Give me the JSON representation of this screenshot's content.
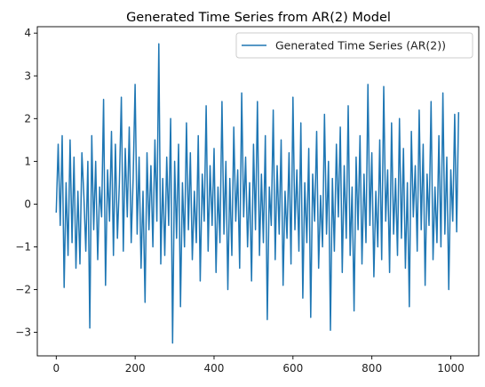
{
  "chart_data": {
    "type": "line",
    "title": "Generated Time Series from AR(2) Model",
    "xlabel": "",
    "ylabel": "",
    "xlim": [
      -48,
      1071
    ],
    "ylim": [
      -3.55,
      4.15
    ],
    "x_ticks": [
      0,
      200,
      400,
      600,
      800,
      1000
    ],
    "y_ticks": [
      -3,
      -2,
      -1,
      0,
      1,
      2,
      3,
      4
    ],
    "x_tick_labels": [
      "0",
      "200",
      "400",
      "600",
      "800",
      "1000"
    ],
    "y_tick_labels": [
      "−3",
      "−2",
      "−1",
      "0",
      "1",
      "2",
      "3",
      "4"
    ],
    "grid": false,
    "legend_position": "top-right",
    "series": [
      {
        "name": "Generated Time Series (AR(2))",
        "color": "#1f77b4",
        "x": [
          0,
          5,
          10,
          15,
          20,
          25,
          30,
          35,
          40,
          45,
          50,
          55,
          60,
          65,
          70,
          75,
          80,
          85,
          90,
          95,
          100,
          105,
          110,
          115,
          120,
          125,
          130,
          135,
          140,
          145,
          150,
          155,
          160,
          165,
          170,
          175,
          180,
          185,
          190,
          195,
          200,
          205,
          210,
          215,
          220,
          225,
          230,
          235,
          240,
          245,
          250,
          255,
          260,
          265,
          270,
          275,
          280,
          285,
          290,
          295,
          300,
          305,
          310,
          315,
          320,
          325,
          330,
          335,
          340,
          345,
          350,
          355,
          360,
          365,
          370,
          375,
          380,
          385,
          390,
          395,
          400,
          405,
          410,
          415,
          420,
          425,
          430,
          435,
          440,
          445,
          450,
          455,
          460,
          465,
          470,
          475,
          480,
          485,
          490,
          495,
          500,
          505,
          510,
          515,
          520,
          525,
          530,
          535,
          540,
          545,
          550,
          555,
          560,
          565,
          570,
          575,
          580,
          585,
          590,
          595,
          600,
          605,
          610,
          615,
          620,
          625,
          630,
          635,
          640,
          645,
          650,
          655,
          660,
          665,
          670,
          675,
          680,
          685,
          690,
          695,
          700,
          705,
          710,
          715,
          720,
          725,
          730,
          735,
          740,
          745,
          750,
          755,
          760,
          765,
          770,
          775,
          780,
          785,
          790,
          795,
          800,
          805,
          810,
          815,
          820,
          825,
          830,
          835,
          840,
          845,
          850,
          855,
          860,
          865,
          870,
          875,
          880,
          885,
          890,
          895,
          900,
          905,
          910,
          915,
          920,
          925,
          930,
          935,
          940,
          945,
          950,
          955,
          960,
          965,
          970,
          975,
          980,
          985,
          990,
          995,
          1000,
          1005,
          1010,
          1015,
          1020
        ],
        "values": [
          -0.2,
          1.4,
          -0.5,
          1.6,
          -1.95,
          0.5,
          -1.2,
          1.5,
          -0.9,
          1.1,
          -1.5,
          0.3,
          -1.4,
          1.2,
          0.2,
          -1.1,
          1.0,
          -2.9,
          1.6,
          -0.6,
          1.0,
          -1.3,
          0.4,
          -0.3,
          2.45,
          -1.9,
          0.8,
          -0.4,
          1.7,
          -1.2,
          1.4,
          -0.8,
          0.5,
          2.5,
          -1.1,
          1.3,
          -0.3,
          1.8,
          -0.9,
          0.6,
          2.8,
          -0.7,
          1.1,
          -1.5,
          0.3,
          -2.3,
          1.2,
          -0.6,
          0.9,
          -1.0,
          1.5,
          -0.4,
          3.75,
          -1.4,
          0.6,
          -1.2,
          1.1,
          -0.5,
          2.0,
          -3.25,
          1.0,
          -0.8,
          1.4,
          -2.4,
          0.5,
          -1.0,
          1.9,
          -0.6,
          1.2,
          -1.3,
          0.3,
          -0.9,
          1.6,
          -1.8,
          0.7,
          -0.4,
          2.3,
          -1.1,
          0.9,
          -0.5,
          1.3,
          -1.6,
          0.4,
          -0.9,
          2.4,
          -0.7,
          1.0,
          -2.0,
          0.6,
          -1.2,
          1.8,
          -0.4,
          0.8,
          -1.5,
          2.6,
          -0.3,
          1.1,
          -1.0,
          0.5,
          -1.8,
          1.4,
          -0.6,
          2.4,
          -1.2,
          0.7,
          -0.9,
          1.6,
          -2.7,
          0.4,
          -0.5,
          2.2,
          -1.3,
          0.9,
          -0.7,
          1.5,
          -1.9,
          0.3,
          -0.8,
          1.2,
          -1.4,
          2.5,
          -0.6,
          0.8,
          -1.1,
          1.9,
          -2.2,
          0.5,
          -0.9,
          1.3,
          -2.65,
          0.7,
          -0.4,
          1.7,
          -1.5,
          0.2,
          -1.0,
          2.1,
          -0.7,
          1.0,
          -2.95,
          0.6,
          -1.1,
          1.4,
          -0.3,
          1.8,
          -1.6,
          0.9,
          -0.8,
          2.3,
          -1.2,
          0.4,
          -2.5,
          1.1,
          -0.6,
          1.6,
          -1.4,
          0.7,
          -0.9,
          2.8,
          -0.5,
          1.2,
          -1.7,
          0.3,
          -1.0,
          1.5,
          -1.3,
          2.75,
          -0.4,
          0.8,
          -1.6,
          1.9,
          -0.7,
          0.6,
          -1.2,
          2.0,
          -0.8,
          1.3,
          -1.5,
          0.5,
          -2.4,
          1.7,
          -0.3,
          0.9,
          -1.1,
          2.2,
          -0.6,
          1.4,
          -1.9,
          0.7,
          -0.5,
          2.4,
          -1.3,
          0.4,
          -0.9,
          1.6,
          -1.0,
          2.6,
          -0.7,
          1.1,
          -2.0,
          0.8,
          -0.4,
          2.1,
          -0.65,
          2.15
        ]
      }
    ]
  }
}
